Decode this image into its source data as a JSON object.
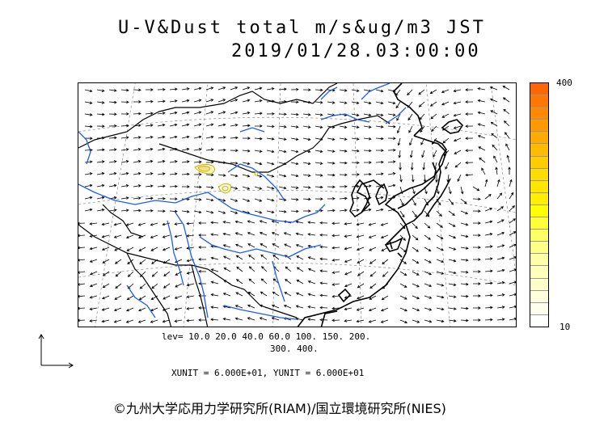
{
  "title": {
    "line1": "U-V&Dust total m/s&ug/m3 JST",
    "line2": "2019/01/28.03:00:00"
  },
  "colorbar": {
    "max_label": "400",
    "min_label": "10",
    "colors_top_to_bottom": [
      "#ff6600",
      "#ff7700",
      "#ff8800",
      "#ff9900",
      "#ffaa00",
      "#ffbb00",
      "#ffcc00",
      "#ffdd00",
      "#ffe600",
      "#ffee00",
      "#ffff00",
      "#ffff33",
      "#ffff66",
      "#ffff88",
      "#ffffaa",
      "#ffffbb",
      "#ffffcc",
      "#ffffdd",
      "#ffffee",
      "#ffffff"
    ]
  },
  "levels": {
    "line1": "lev= 10.0 20.0 40.0 60.0 100. 150. 200.",
    "line2": "300. 400."
  },
  "units": {
    "line": "XUNIT = 6.000E+01, YUNIT = 6.000E+01"
  },
  "credit": "©九州大学応用力学研究所(RIAM)/国立環境研究所(NIES)",
  "map": {
    "coastline_color": "#000000",
    "river_color": "#1a5cff",
    "dust_contour_color": "#c8b400",
    "grid_color": "#888888"
  }
}
